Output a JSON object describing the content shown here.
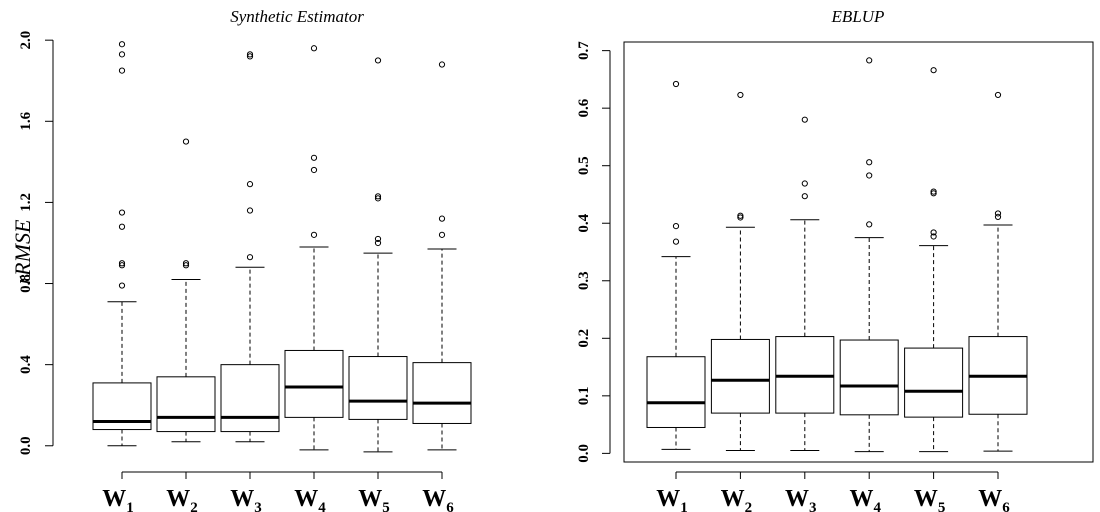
{
  "chart_data": [
    {
      "type": "box",
      "title": "Synthetic Estimator",
      "ylabel": "rRMSE",
      "xlabel": "",
      "ylim": [
        -0.08,
        2.06
      ],
      "yticks": [
        0.0,
        0.4,
        0.8,
        1.2,
        1.6,
        2.0
      ],
      "ytick_labels": [
        "0.0",
        "0.4",
        "0.8",
        "1.2",
        "1.6",
        "2.0"
      ],
      "categories": [
        {
          "base": "W",
          "sub": "1"
        },
        {
          "base": "W",
          "sub": "2"
        },
        {
          "base": "W",
          "sub": "3"
        },
        {
          "base": "W",
          "sub": "4"
        },
        {
          "base": "W",
          "sub": "5"
        },
        {
          "base": "W",
          "sub": "6"
        }
      ],
      "boxes": [
        {
          "min": 0.0,
          "q1": 0.08,
          "median": 0.12,
          "q3": 0.31,
          "max": 0.71,
          "outliers": [
            0.79,
            0.89,
            0.9,
            1.08,
            1.15,
            1.85,
            1.93,
            1.98
          ]
        },
        {
          "min": 0.02,
          "q1": 0.07,
          "median": 0.14,
          "q3": 0.34,
          "max": 0.82,
          "outliers": [
            0.89,
            0.9,
            1.5
          ]
        },
        {
          "min": 0.02,
          "q1": 0.07,
          "median": 0.14,
          "q3": 0.4,
          "max": 0.88,
          "outliers": [
            0.93,
            1.16,
            1.29,
            1.92,
            1.93
          ]
        },
        {
          "min": -0.02,
          "q1": 0.14,
          "median": 0.29,
          "q3": 0.47,
          "max": 0.98,
          "outliers": [
            1.04,
            1.36,
            1.42,
            1.96
          ]
        },
        {
          "min": -0.03,
          "q1": 0.13,
          "median": 0.22,
          "q3": 0.44,
          "max": 0.95,
          "outliers": [
            1.0,
            1.02,
            1.22,
            1.23,
            1.9
          ]
        },
        {
          "min": -0.02,
          "q1": 0.11,
          "median": 0.21,
          "q3": 0.41,
          "max": 0.97,
          "outliers": [
            1.04,
            1.12,
            1.88
          ]
        }
      ]
    },
    {
      "type": "box",
      "title": "EBLUP",
      "ylabel": "",
      "xlabel": "",
      "ylim": [
        -0.015,
        0.715
      ],
      "yticks": [
        0.0,
        0.1,
        0.2,
        0.3,
        0.4,
        0.5,
        0.6,
        0.7
      ],
      "ytick_labels": [
        "0.0",
        "0.1",
        "0.2",
        "0.3",
        "0.4",
        "0.5",
        "0.6",
        "0.7"
      ],
      "categories": [
        {
          "base": "W",
          "sub": "1"
        },
        {
          "base": "W",
          "sub": "2"
        },
        {
          "base": "W",
          "sub": "3"
        },
        {
          "base": "W",
          "sub": "4"
        },
        {
          "base": "W",
          "sub": "5"
        },
        {
          "base": "W",
          "sub": "6"
        }
      ],
      "boxes": [
        {
          "min": 0.007,
          "q1": 0.045,
          "median": 0.088,
          "q3": 0.168,
          "max": 0.342,
          "outliers": [
            0.368,
            0.395,
            0.642
          ]
        },
        {
          "min": 0.005,
          "q1": 0.07,
          "median": 0.127,
          "q3": 0.198,
          "max": 0.393,
          "outliers": [
            0.41,
            0.413,
            0.623
          ]
        },
        {
          "min": 0.005,
          "q1": 0.07,
          "median": 0.134,
          "q3": 0.203,
          "max": 0.406,
          "outliers": [
            0.447,
            0.469,
            0.58
          ]
        },
        {
          "min": 0.003,
          "q1": 0.067,
          "median": 0.117,
          "q3": 0.197,
          "max": 0.375,
          "outliers": [
            0.398,
            0.483,
            0.506,
            0.683
          ]
        },
        {
          "min": 0.003,
          "q1": 0.063,
          "median": 0.108,
          "q3": 0.183,
          "max": 0.361,
          "outliers": [
            0.377,
            0.384,
            0.452,
            0.455,
            0.666
          ]
        },
        {
          "min": 0.004,
          "q1": 0.068,
          "median": 0.134,
          "q3": 0.203,
          "max": 0.397,
          "outliers": [
            0.411,
            0.417,
            0.623
          ]
        }
      ]
    }
  ]
}
